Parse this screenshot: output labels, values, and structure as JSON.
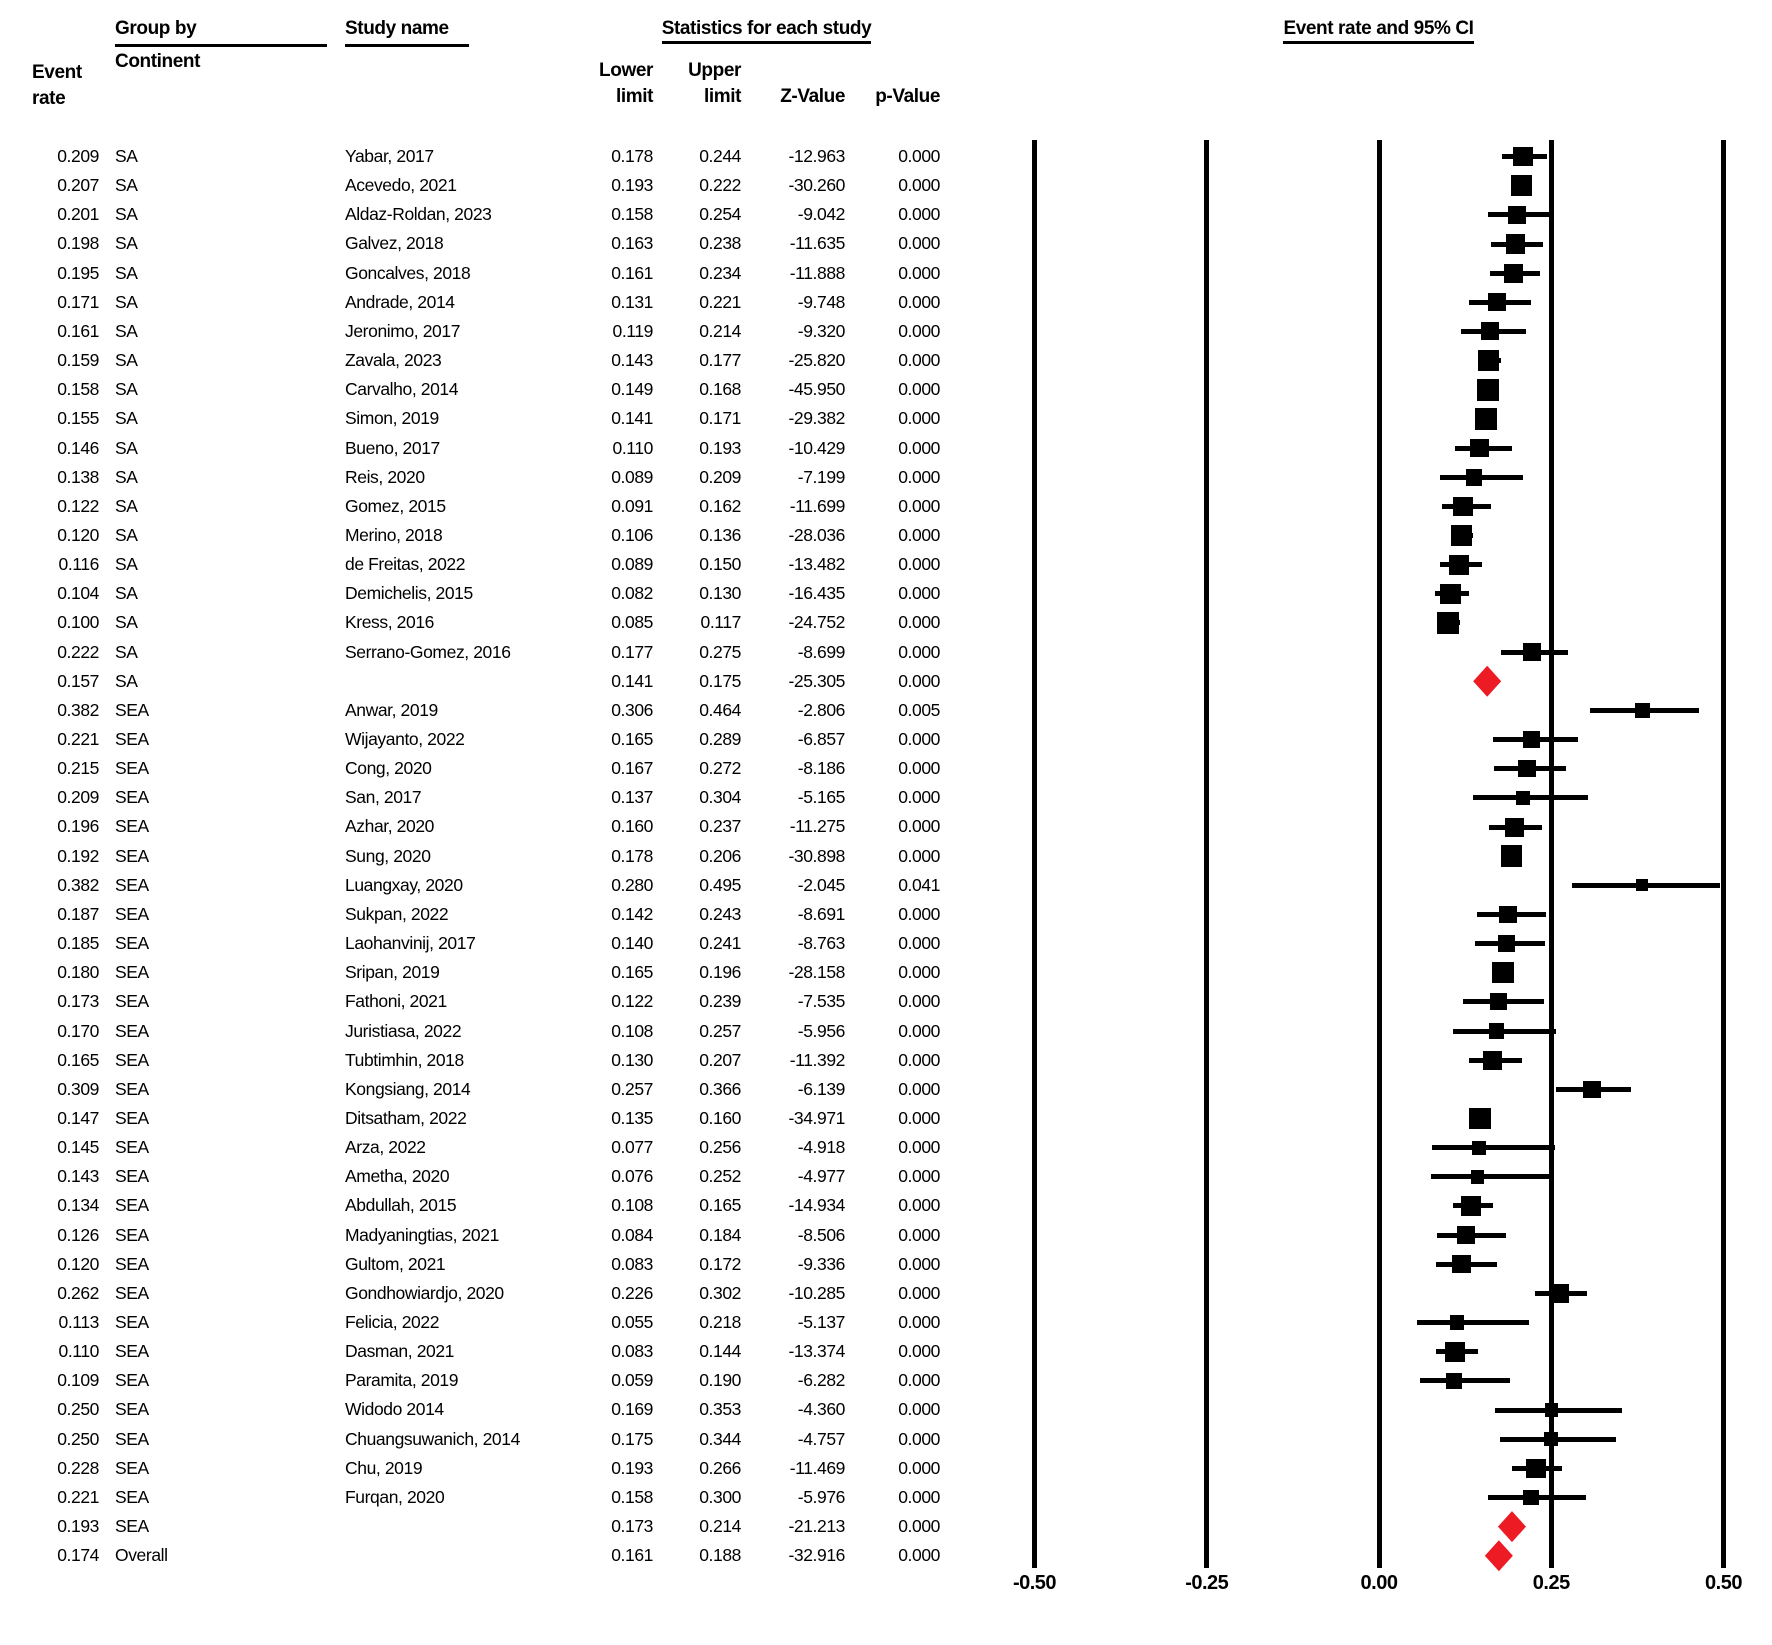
{
  "header": {
    "event_rate": "Event\nrate",
    "group_by": "Group by",
    "continent": "Continent",
    "study_name": "Study name",
    "statistics": "Statistics for each study",
    "lower": "Lower\nlimit",
    "upper": "Upper\nlimit",
    "z_value": "Z-Value",
    "p_value": "p-Value",
    "plot_title": "Event rate and 95% CI"
  },
  "colors": {
    "text": "#000000",
    "marker": "#000000",
    "summary_diamond": "#ed1c24",
    "gridline": "#000000"
  },
  "chart_data": {
    "type": "forest",
    "title": "Event rate and 95% CI",
    "x_axis": {
      "range": [
        -0.5,
        0.5
      ],
      "ticks": [
        -0.5,
        -0.25,
        0,
        0.25,
        0.5
      ],
      "tick_labels": [
        "-0.50",
        "-0.25",
        "0.00",
        "0.25",
        "0.50"
      ]
    },
    "columns": [
      "Event rate",
      "Group by Continent",
      "Study name",
      "Lower limit",
      "Upper limit",
      "Z-Value",
      "p-Value"
    ],
    "rows": [
      {
        "rate": "0.209",
        "group": "SA",
        "study": "Yabar, 2017",
        "lower": "0.178",
        "upper": "0.244",
        "z": "-12.963",
        "p": "0.000",
        "kind": "study"
      },
      {
        "rate": "0.207",
        "group": "SA",
        "study": "Acevedo, 2021",
        "lower": "0.193",
        "upper": "0.222",
        "z": "-30.260",
        "p": "0.000",
        "kind": "study"
      },
      {
        "rate": "0.201",
        "group": "SA",
        "study": "Aldaz-Roldan, 2023",
        "lower": "0.158",
        "upper": "0.254",
        "z": "-9.042",
        "p": "0.000",
        "kind": "study"
      },
      {
        "rate": "0.198",
        "group": "SA",
        "study": "Galvez, 2018",
        "lower": "0.163",
        "upper": "0.238",
        "z": "-11.635",
        "p": "0.000",
        "kind": "study"
      },
      {
        "rate": "0.195",
        "group": "SA",
        "study": "Goncalves, 2018",
        "lower": "0.161",
        "upper": "0.234",
        "z": "-11.888",
        "p": "0.000",
        "kind": "study"
      },
      {
        "rate": "0.171",
        "group": "SA",
        "study": "Andrade, 2014",
        "lower": "0.131",
        "upper": "0.221",
        "z": "-9.748",
        "p": "0.000",
        "kind": "study"
      },
      {
        "rate": "0.161",
        "group": "SA",
        "study": "Jeronimo, 2017",
        "lower": "0.119",
        "upper": "0.214",
        "z": "-9.320",
        "p": "0.000",
        "kind": "study"
      },
      {
        "rate": "0.159",
        "group": "SA",
        "study": "Zavala, 2023",
        "lower": "0.143",
        "upper": "0.177",
        "z": "-25.820",
        "p": "0.000",
        "kind": "study"
      },
      {
        "rate": "0.158",
        "group": "SA",
        "study": "Carvalho, 2014",
        "lower": "0.149",
        "upper": "0.168",
        "z": "-45.950",
        "p": "0.000",
        "kind": "study"
      },
      {
        "rate": "0.155",
        "group": "SA",
        "study": "Simon, 2019",
        "lower": "0.141",
        "upper": "0.171",
        "z": "-29.382",
        "p": "0.000",
        "kind": "study"
      },
      {
        "rate": "0.146",
        "group": "SA",
        "study": "Bueno, 2017",
        "lower": "0.110",
        "upper": "0.193",
        "z": "-10.429",
        "p": "0.000",
        "kind": "study"
      },
      {
        "rate": "0.138",
        "group": "SA",
        "study": "Reis, 2020",
        "lower": "0.089",
        "upper": "0.209",
        "z": "-7.199",
        "p": "0.000",
        "kind": "study"
      },
      {
        "rate": "0.122",
        "group": "SA",
        "study": "Gomez, 2015",
        "lower": "0.091",
        "upper": "0.162",
        "z": "-11.699",
        "p": "0.000",
        "kind": "study"
      },
      {
        "rate": "0.120",
        "group": "SA",
        "study": "Merino, 2018",
        "lower": "0.106",
        "upper": "0.136",
        "z": "-28.036",
        "p": "0.000",
        "kind": "study"
      },
      {
        "rate": "0.116",
        "group": "SA",
        "study": "de Freitas, 2022",
        "lower": "0.089",
        "upper": "0.150",
        "z": "-13.482",
        "p": "0.000",
        "kind": "study"
      },
      {
        "rate": "0.104",
        "group": "SA",
        "study": "Demichelis, 2015",
        "lower": "0.082",
        "upper": "0.130",
        "z": "-16.435",
        "p": "0.000",
        "kind": "study"
      },
      {
        "rate": "0.100",
        "group": "SA",
        "study": "Kress, 2016",
        "lower": "0.085",
        "upper": "0.117",
        "z": "-24.752",
        "p": "0.000",
        "kind": "study"
      },
      {
        "rate": "0.222",
        "group": "SA",
        "study": "Serrano-Gomez, 2016",
        "lower": "0.177",
        "upper": "0.275",
        "z": "-8.699",
        "p": "0.000",
        "kind": "study"
      },
      {
        "rate": "0.157",
        "group": "SA",
        "study": "",
        "lower": "0.141",
        "upper": "0.175",
        "z": "-25.305",
        "p": "0.000",
        "kind": "summary"
      },
      {
        "rate": "0.382",
        "group": "SEA",
        "study": "Anwar, 2019",
        "lower": "0.306",
        "upper": "0.464",
        "z": "-2.806",
        "p": "0.005",
        "kind": "study"
      },
      {
        "rate": "0.221",
        "group": "SEA",
        "study": "Wijayanto, 2022",
        "lower": "0.165",
        "upper": "0.289",
        "z": "-6.857",
        "p": "0.000",
        "kind": "study"
      },
      {
        "rate": "0.215",
        "group": "SEA",
        "study": "Cong, 2020",
        "lower": "0.167",
        "upper": "0.272",
        "z": "-8.186",
        "p": "0.000",
        "kind": "study"
      },
      {
        "rate": "0.209",
        "group": "SEA",
        "study": "San, 2017",
        "lower": "0.137",
        "upper": "0.304",
        "z": "-5.165",
        "p": "0.000",
        "kind": "study"
      },
      {
        "rate": "0.196",
        "group": "SEA",
        "study": "Azhar, 2020",
        "lower": "0.160",
        "upper": "0.237",
        "z": "-11.275",
        "p": "0.000",
        "kind": "study"
      },
      {
        "rate": "0.192",
        "group": "SEA",
        "study": "Sung, 2020",
        "lower": "0.178",
        "upper": "0.206",
        "z": "-30.898",
        "p": "0.000",
        "kind": "study"
      },
      {
        "rate": "0.382",
        "group": "SEA",
        "study": "Luangxay, 2020",
        "lower": "0.280",
        "upper": "0.495",
        "z": "-2.045",
        "p": "0.041",
        "kind": "study"
      },
      {
        "rate": "0.187",
        "group": "SEA",
        "study": "Sukpan, 2022",
        "lower": "0.142",
        "upper": "0.243",
        "z": "-8.691",
        "p": "0.000",
        "kind": "study"
      },
      {
        "rate": "0.185",
        "group": "SEA",
        "study": "Laohanvinij, 2017",
        "lower": "0.140",
        "upper": "0.241",
        "z": "-8.763",
        "p": "0.000",
        "kind": "study"
      },
      {
        "rate": "0.180",
        "group": "SEA",
        "study": "Sripan, 2019",
        "lower": "0.165",
        "upper": "0.196",
        "z": "-28.158",
        "p": "0.000",
        "kind": "study"
      },
      {
        "rate": "0.173",
        "group": "SEA",
        "study": "Fathoni, 2021",
        "lower": "0.122",
        "upper": "0.239",
        "z": "-7.535",
        "p": "0.000",
        "kind": "study"
      },
      {
        "rate": "0.170",
        "group": "SEA",
        "study": "Juristiasa, 2022",
        "lower": "0.108",
        "upper": "0.257",
        "z": "-5.956",
        "p": "0.000",
        "kind": "study"
      },
      {
        "rate": "0.165",
        "group": "SEA",
        "study": "Tubtimhin, 2018",
        "lower": "0.130",
        "upper": "0.207",
        "z": "-11.392",
        "p": "0.000",
        "kind": "study"
      },
      {
        "rate": "0.309",
        "group": "SEA",
        "study": "Kongsiang, 2014",
        "lower": "0.257",
        "upper": "0.366",
        "z": "-6.139",
        "p": "0.000",
        "kind": "study"
      },
      {
        "rate": "0.147",
        "group": "SEA",
        "study": "Ditsatham, 2022",
        "lower": "0.135",
        "upper": "0.160",
        "z": "-34.971",
        "p": "0.000",
        "kind": "study"
      },
      {
        "rate": "0.145",
        "group": "SEA",
        "study": "Arza, 2022",
        "lower": "0.077",
        "upper": "0.256",
        "z": "-4.918",
        "p": "0.000",
        "kind": "study"
      },
      {
        "rate": "0.143",
        "group": "SEA",
        "study": "Ametha, 2020",
        "lower": "0.076",
        "upper": "0.252",
        "z": "-4.977",
        "p": "0.000",
        "kind": "study"
      },
      {
        "rate": "0.134",
        "group": "SEA",
        "study": "Abdullah, 2015",
        "lower": "0.108",
        "upper": "0.165",
        "z": "-14.934",
        "p": "0.000",
        "kind": "study"
      },
      {
        "rate": "0.126",
        "group": "SEA",
        "study": "Madyaningtias, 2021",
        "lower": "0.084",
        "upper": "0.184",
        "z": "-8.506",
        "p": "0.000",
        "kind": "study"
      },
      {
        "rate": "0.120",
        "group": "SEA",
        "study": "Gultom, 2021",
        "lower": "0.083",
        "upper": "0.172",
        "z": "-9.336",
        "p": "0.000",
        "kind": "study"
      },
      {
        "rate": "0.262",
        "group": "SEA",
        "study": "Gondhowiardjo, 2020",
        "lower": "0.226",
        "upper": "0.302",
        "z": "-10.285",
        "p": "0.000",
        "kind": "study"
      },
      {
        "rate": "0.113",
        "group": "SEA",
        "study": "Felicia, 2022",
        "lower": "0.055",
        "upper": "0.218",
        "z": "-5.137",
        "p": "0.000",
        "kind": "study"
      },
      {
        "rate": "0.110",
        "group": "SEA",
        "study": "Dasman, 2021",
        "lower": "0.083",
        "upper": "0.144",
        "z": "-13.374",
        "p": "0.000",
        "kind": "study"
      },
      {
        "rate": "0.109",
        "group": "SEA",
        "study": "Paramita, 2019",
        "lower": "0.059",
        "upper": "0.190",
        "z": "-6.282",
        "p": "0.000",
        "kind": "study"
      },
      {
        "rate": "0.250",
        "group": "SEA",
        "study": "Widodo 2014",
        "lower": "0.169",
        "upper": "0.353",
        "z": "-4.360",
        "p": "0.000",
        "kind": "study"
      },
      {
        "rate": "0.250",
        "group": "SEA",
        "study": "Chuangsuwanich, 2014",
        "lower": "0.175",
        "upper": "0.344",
        "z": "-4.757",
        "p": "0.000",
        "kind": "study"
      },
      {
        "rate": "0.228",
        "group": "SEA",
        "study": "Chu, 2019",
        "lower": "0.193",
        "upper": "0.266",
        "z": "-11.469",
        "p": "0.000",
        "kind": "study"
      },
      {
        "rate": "0.221",
        "group": "SEA",
        "study": "Furqan, 2020",
        "lower": "0.158",
        "upper": "0.300",
        "z": "-5.976",
        "p": "0.000",
        "kind": "study"
      },
      {
        "rate": "0.193",
        "group": "SEA",
        "study": "",
        "lower": "0.173",
        "upper": "0.214",
        "z": "-21.213",
        "p": "0.000",
        "kind": "summary"
      },
      {
        "rate": "0.174",
        "group": "Overall",
        "study": "",
        "lower": "0.161",
        "upper": "0.188",
        "z": "-32.916",
        "p": "0.000",
        "kind": "summary"
      }
    ]
  }
}
